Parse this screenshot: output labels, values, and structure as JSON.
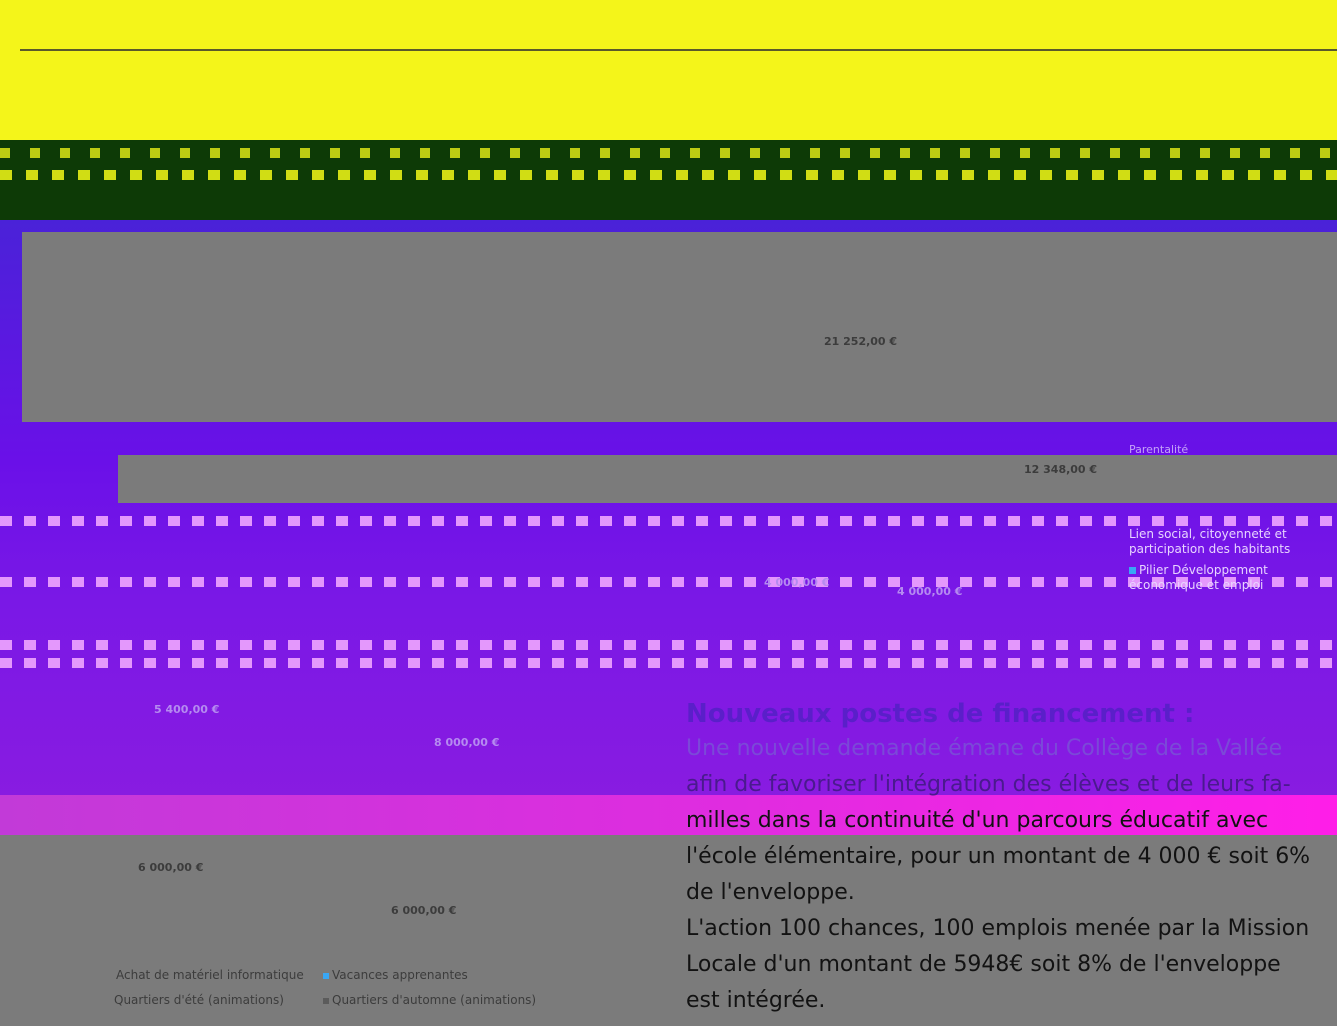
{
  "chart": {
    "value_labels": {
      "v21252": "21 252,00 €",
      "v12348": "12 348,00 €",
      "v4000a": "4 000,00 €",
      "v4000b": "4 000,00 €",
      "v5400": "5 400,00 €",
      "v8000": "8 000,00 €",
      "v6000a": "6 000,00 €",
      "v6000b": "6 000,00 €"
    },
    "side_legend": {
      "parentalite": "Parentalité",
      "lien_social": "Lien social, citoyenneté et participation des habitants",
      "pilier": "Pilier Développement économique et emploi"
    },
    "bottom_legend": {
      "materiel": "Achat de matériel informatique",
      "vacances": "Vacances apprenantes",
      "ete": "Quartiers d'été (animations)",
      "automne": "Quartiers d'automne (animations)"
    },
    "colors": {
      "accent_blue": "#39a7f5"
    }
  },
  "text": {
    "heading": "Nouveaux postes de financement :",
    "p1_line1": "Une nouvelle demande émane du Collège de la Vallée",
    "p1_line2": "afin de favoriser l'intégration des élèves et de leurs fa-",
    "p1_line3": "milles dans la continuité d'un parcours éducatif avec",
    "p1_line4": "l'école élémentaire, pour un montant de 4 000 € soit 6%",
    "p1_line5": "de l'enveloppe.",
    "p2_line1": "L'action 100 chances, 100 emplois menée par la Mission",
    "p2_line2": "Locale d'un montant de 5948€ soit 8% de l'enveloppe",
    "p2_line3": "est intégrée."
  }
}
